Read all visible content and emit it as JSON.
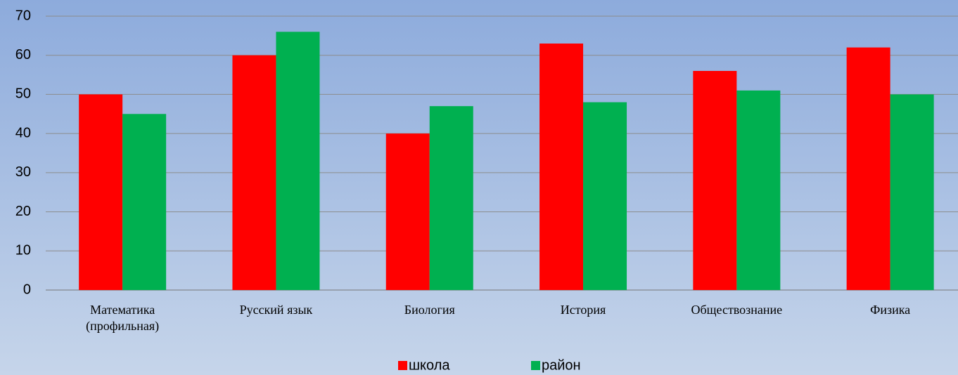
{
  "chart_data": {
    "type": "bar",
    "categories": [
      "Математика\n(профильная)",
      "Русский язык",
      "Биология",
      "История",
      "Обществознание",
      "Физика"
    ],
    "series": [
      {
        "name": "школа",
        "color": "#ff0000",
        "values": [
          50,
          60,
          40,
          63,
          56,
          62
        ]
      },
      {
        "name": "район",
        "color": "#00b050",
        "values": [
          45,
          66,
          47,
          48,
          51,
          50
        ]
      }
    ],
    "ylim": [
      0,
      70
    ],
    "yticks": [
      0,
      10,
      20,
      30,
      40,
      50,
      60,
      70
    ],
    "grid": true,
    "legend": "bottom"
  }
}
